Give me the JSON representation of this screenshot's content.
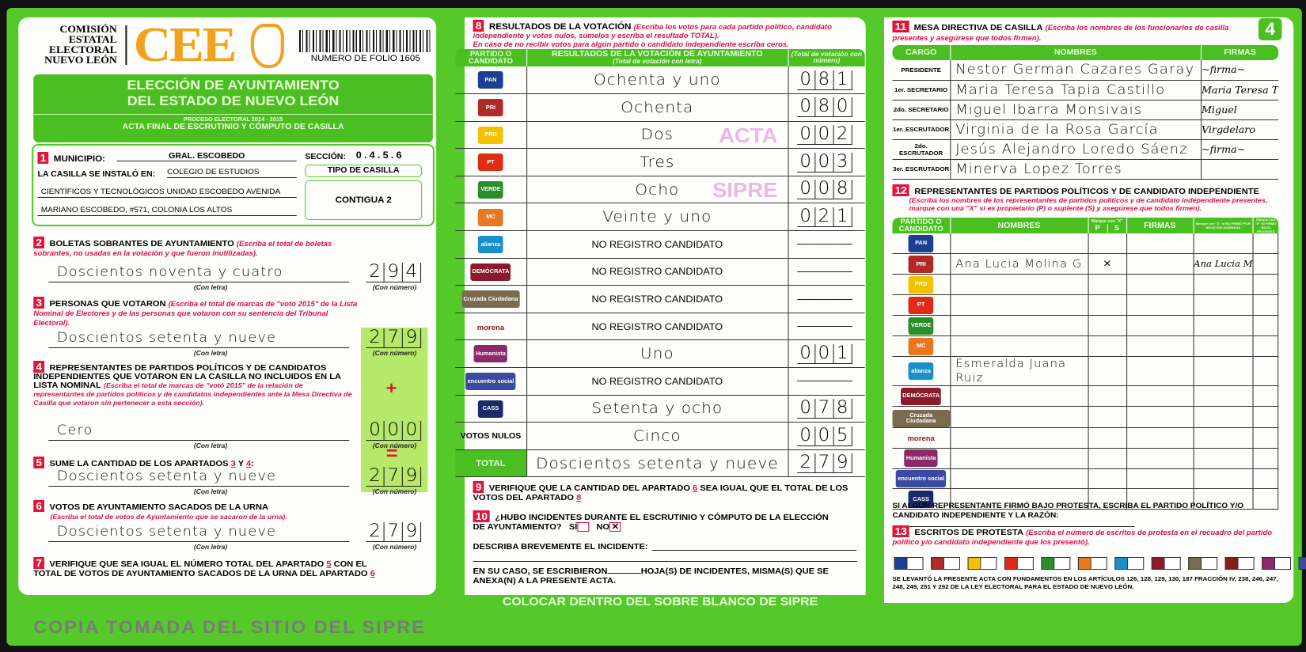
{
  "header": {
    "commission": [
      "COMISIÓN",
      "ESTATAL",
      "ELECTORAL",
      "NUEVO LEÓN"
    ],
    "logo": "CEE",
    "folio": "NUMERO DE FOLIO 1605",
    "title_1": "ELECCIÓN DE AYUNTAMIENTO",
    "title_2": "DEL ESTADO DE NUEVO LEÓN",
    "process": "PROCESO ELECTORAL 2014 - 2015",
    "acta": "ACTA FINAL DE ESCRUTINIO Y CÓMPUTO DE CASILLA",
    "page_number": "4"
  },
  "s1": {
    "num": "1",
    "municipio_label": "MUNICIPIO:",
    "municipio": "GRAL. ESCOBEDO",
    "seccion_label": "SECCIÓN:",
    "seccion_digits": [
      "0",
      "4",
      "5",
      "6"
    ],
    "instalo_label": "LA CASILLA SE INSTALÓ EN:",
    "address": [
      "COLEGIO DE ESTUDIOS",
      "CIENTÍFICOS Y TECNOLÓGICOS UNIDAD ESCOBEDO AVENIDA",
      "MARIANO ESCOBEDO, #571, COLONIA LOS ALTOS"
    ],
    "tipo_label": "TIPO DE CASILLA",
    "tipo": "CONTIGUA 2"
  },
  "labels": {
    "con_letra": "(Con letra)",
    "con_numero": "(Con número)",
    "plus": "+",
    "equals": "="
  },
  "s2": {
    "num": "2",
    "title": "BOLETAS SOBRANTES DE AYUNTAMIENTO",
    "note": "(Escriba el total de boletas sobrantes, no usadas en la votación y que fueron inutilizadas).",
    "letra": "Doscientos noventa y cuatro",
    "digits": [
      "2",
      "9",
      "4"
    ]
  },
  "s3": {
    "num": "3",
    "title": "PERSONAS QUE VOTARON",
    "note": "(Escriba el total de marcas de \"votó 2015\" de la Lista Nominal de Electores y de las personas que votaron con su sentencia del Tribunal Electoral).",
    "letra": "Doscientos setenta y nueve",
    "digits": [
      "2",
      "7",
      "9"
    ]
  },
  "s4": {
    "num": "4",
    "title": "REPRESENTANTES DE PARTIDOS POLÍTICOS Y DE CANDIDATOS INDEPENDIENTES QUE VOTARON EN LA CASILLA NO INCLUIDOS EN LA LISTA NOMINAL",
    "note": "(Escriba el total de marcas de \"votó 2015\" de la relación de representantes de partidos políticos y de candidatos independientes ante la Mesa Directiva de Casilla que votaron sin pertenecer a esta sección).",
    "letra": "Cero",
    "digits": [
      "0",
      "0",
      "0"
    ]
  },
  "s5": {
    "num": "5",
    "title": "SUME LA CANTIDAD DE LOS APARTADOS",
    "ref_a": "3",
    "and": "Y",
    "ref_b": "4",
    "colon": ":",
    "letra": "Doscientos setenta y nueve",
    "digits": [
      "2",
      "7",
      "9"
    ]
  },
  "s6": {
    "num": "6",
    "title": "VOTOS DE AYUNTAMIENTO SACADOS DE LA URNA",
    "note": "(Escriba el total de votos de Ayuntamiento que se sacaron de la urna).",
    "letra": "Doscientos setenta y nueve",
    "digits": [
      "2",
      "7",
      "9"
    ]
  },
  "s7": {
    "num": "7",
    "text_a": "VERIFIQUE QUE SEA IGUAL EL NÚMERO TOTAL DEL APARTADO",
    "ref_a": "5",
    "text_b": "CON EL TOTAL DE VOTOS DE AYUNTAMIENTO SACADOS DE LA URNA DEL APARTADO",
    "ref_b": "6"
  },
  "s8": {
    "num": "8",
    "title": "RESULTADOS DE LA VOTACIÓN",
    "note": "(Escriba los votos para cada partido político, candidato independiente y votos nulos, súmelos y escriba el resultado TOTAL).",
    "note2": "En caso de no recibir votos para algún partido o candidato independiente escriba ceros.",
    "col_party": "PARTIDO O CANDIDATO",
    "col_results": "RESULTADOS DE LA VOTACIÓN DE AYUNTAMIENTO",
    "col_results_sub": "(Total de votación con letra)",
    "col_number": "(Total de votación con número)",
    "rows": [
      {
        "party": "PAN",
        "color": "#1b3f94",
        "letra": "Ochenta y uno",
        "digits": [
          "0",
          "8",
          "1"
        ]
      },
      {
        "party": "PRI",
        "color": "#b02a2a",
        "letra": "Ochenta",
        "digits": [
          "0",
          "8",
          "0"
        ]
      },
      {
        "party": "PRD",
        "color": "#f2c200",
        "letra": "Dos",
        "digits": [
          "0",
          "0",
          "2"
        ]
      },
      {
        "party": "PT",
        "color": "#e02b17",
        "letra": "Tres",
        "digits": [
          "0",
          "0",
          "3"
        ]
      },
      {
        "party": "VERDE",
        "color": "#2a8f2a",
        "letra": "Ocho",
        "digits": [
          "0",
          "0",
          "8"
        ]
      },
      {
        "party": "MC",
        "color": "#e87722",
        "letra": "Veinte y uno",
        "digits": [
          "0",
          "2",
          "1"
        ]
      },
      {
        "party": "alianza",
        "color": "#1a8fc9",
        "letra": "NO REGISTRO CANDIDATO",
        "digits": [
          "",
          "",
          ""
        ]
      },
      {
        "party": "DEMÓCRATA",
        "color": "#8b1a2b",
        "letra": "NO REGISTRO CANDIDATO",
        "digits": [
          "",
          "",
          ""
        ]
      },
      {
        "party": "Cruzada Ciudadana",
        "color": "#7a6a50",
        "letra": "NO REGISTRO CANDIDATO",
        "digits": [
          "",
          "",
          ""
        ]
      },
      {
        "party": "morena",
        "color": "#8b1a1a",
        "letra": "NO REGISTRO CANDIDATO",
        "digits": [
          "",
          "",
          ""
        ]
      },
      {
        "party": "Humanista",
        "color": "#8a2a6a",
        "letra": "Uno",
        "digits": [
          "0",
          "0",
          "1"
        ]
      },
      {
        "party": "encuentro social",
        "color": "#3a4aa0",
        "letra": "NO REGISTRO CANDIDATO",
        "digits": [
          "",
          "",
          ""
        ]
      },
      {
        "party": "CASS",
        "color": "#1c2a6a",
        "letra": "Setenta y ocho",
        "digits": [
          "0",
          "7",
          "8"
        ]
      }
    ],
    "nulos_label": "VOTOS NULOS",
    "nulos": {
      "letra": "Cinco",
      "digits": [
        "0",
        "0",
        "5"
      ]
    },
    "total_label": "TOTAL",
    "total": {
      "letra": "Doscientos setenta y nueve",
      "digits": [
        "2",
        "7",
        "9"
      ]
    }
  },
  "s9": {
    "num": "9",
    "text_a": "VERIFIQUE QUE LA CANTIDAD DEL APARTADO",
    "ref_a": "6",
    "text_b": "SEA IGUAL QUE EL TOTAL DE LOS VOTOS DEL APARTADO",
    "ref_b": "8"
  },
  "s10": {
    "num": "10",
    "question": "¿HUBO INCIDENTES DURANTE EL ESCRUTINIO Y CÓMPUTO DE LA ELECCIÓN DE AYUNTAMIENTO?",
    "si": "SÍ",
    "no": "NO",
    "no_mark": "✕",
    "describe": "DESCRIBA BREVEMENTE EL INCIDENTE:",
    "hojas_a": "EN SU CASO, SE ESCRIBIERON",
    "hojas_b": "HOJA(S) DE INCIDENTES, MISMA(S) QUE SE ANEXA(N) A LA PRESENTE ACTA."
  },
  "banner": "COLOCAR DENTRO DEL SOBRE BLANCO DE SIPRE",
  "s11": {
    "num": "11",
    "title": "MESA DIRECTIVA DE CASILLA",
    "note": "(Escriba los nombres de los funcionarios de casilla presentes y asegúrese que todos firmen).",
    "col_cargo": "CARGO",
    "col_nombres": "NOMBRES",
    "col_firmas": "FIRMAS",
    "rows": [
      {
        "cargo": "PRESIDENTE",
        "nombre": "Nestor German Cazares Garay",
        "firma": "~firma~"
      },
      {
        "cargo": "1er. SECRETARIO",
        "nombre": "Maria Teresa Tapia Castillo",
        "firma": "Maria Teresa T"
      },
      {
        "cargo": "2do. SECRETARIO",
        "nombre": "Miguel Ibarra Monsivais",
        "firma": "Miguel"
      },
      {
        "cargo": "1er. ESCRUTADOR",
        "nombre": "Virginia de la Rosa García",
        "firma": "Virgdelaro"
      },
      {
        "cargo": "2do. ESCRUTADOR",
        "nombre": "Jesús Alejandro Loredo Sáenz",
        "firma": "~firma~"
      },
      {
        "cargo": "3er. ESCRUTADOR",
        "nombre": "Minerva Lopez Torres",
        "firma": ""
      }
    ]
  },
  "s12": {
    "num": "12",
    "title": "REPRESENTANTES DE PARTIDOS POLÍTICOS Y DE CANDIDATO INDEPENDIENTE",
    "note": "(Escriba los nombres de los representantes de partidos políticos y de candidato independiente presentes, marque con una \"X\" si es propietario (P) o suplente (S) y asegúrese que todos firmen).",
    "col_party": "PARTIDO O CANDIDATO",
    "col_nombres": "NOMBRES",
    "col_mark": "Marque con \"X\"",
    "col_p": "P",
    "col_s": "S",
    "col_firmas": "FIRMAS",
    "col_no_firmo": "Marque con \"X\" si NO FIRMÓ POR",
    "col_no_firmo_a": "NEGATIVA",
    "col_no_firmo_b": "AUSENCIA",
    "col_protesta": "Marque con \"X\" SI FIRMÓ BAJO PROTESTA",
    "rows": [
      {
        "party": "PAN",
        "nombre": "",
        "p": "",
        "s": "",
        "firma": ""
      },
      {
        "party": "PRI",
        "nombre": "Ana Lucia Molina G.",
        "p": "×",
        "s": "",
        "firma": "Ana Lucia M"
      },
      {
        "party": "PRD",
        "nombre": "",
        "p": "",
        "s": "",
        "firma": ""
      },
      {
        "party": "PT",
        "nombre": "",
        "p": "",
        "s": "",
        "firma": ""
      },
      {
        "party": "VERDE",
        "nombre": "",
        "p": "",
        "s": "",
        "firma": ""
      },
      {
        "party": "MC",
        "nombre": "",
        "p": "",
        "s": "",
        "firma": ""
      },
      {
        "party": "alianza",
        "nombre": "Esmeralda Juana Ruiz",
        "p": "",
        "s": "",
        "firma": ""
      },
      {
        "party": "DEMÓCRATA",
        "nombre": "",
        "p": "",
        "s": "",
        "firma": ""
      },
      {
        "party": "Cruzada Ciudadana",
        "nombre": "",
        "p": "",
        "s": "",
        "firma": ""
      },
      {
        "party": "morena",
        "nombre": "",
        "p": "",
        "s": "",
        "firma": ""
      },
      {
        "party": "Humanista",
        "nombre": "",
        "p": "",
        "s": "",
        "firma": ""
      },
      {
        "party": "encuentro social",
        "nombre": "",
        "p": "",
        "s": "",
        "firma": ""
      },
      {
        "party": "CASS",
        "nombre": "",
        "p": "",
        "s": "",
        "firma": ""
      }
    ],
    "protest_text": "SI ALGÚN REPRESENTANTE FIRMÓ BAJO PROTESTA, ESCRIBA EL PARTIDO POLÍTICO Y/O CANDIDATO INDEPENDIENTE Y LA RAZÓN:"
  },
  "s13": {
    "num": "13",
    "title": "ESCRITOS DE PROTESTA",
    "note": "(Escriba el número de escritos de protesta en el recuadro del partido político y/o candidato independiente que los presentó)."
  },
  "footer": "SE LEVANTÓ LA PRESENTE ACTA CON FUNDAMENTOS EN LOS ARTÍCULOS 126, 128, 129, 130, 187 FRACCIÓN IV, 238, 246, 247, 248, 249, 251 Y 292 DE LA LEY ELECTORAL PARA EL ESTADO DE NUEVO LEÓN.",
  "watermarks": {
    "acta": "ACTA",
    "sipre": "SIPRE",
    "copia": "COPIA TOMADA DEL SITIO DEL SIPRE"
  }
}
